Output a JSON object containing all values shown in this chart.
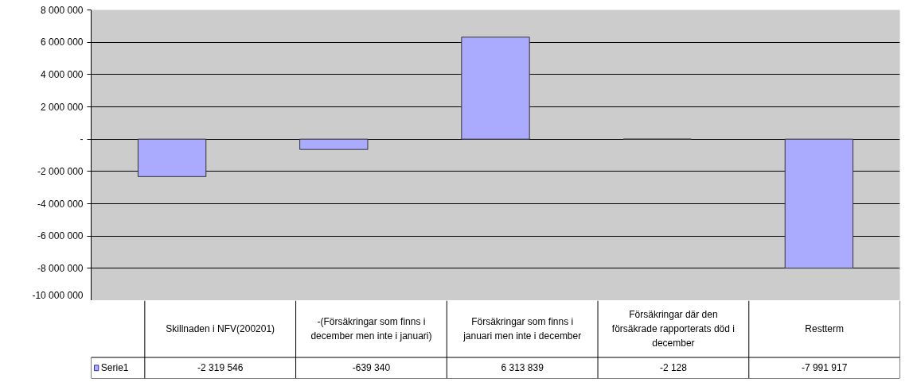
{
  "chart_data": {
    "type": "bar",
    "categories": [
      "Skillnaden i NFV(200201)",
      "-(Försäkringar som finns i december men inte i januari)",
      "Försäkringar som finns i januari men inte i december",
      "Försäkringar där den försäkrade rapporterats död i december",
      "Restterm"
    ],
    "series": [
      {
        "name": "Serie1",
        "color": "#aaaaff",
        "values": [
          -2319546,
          -639340,
          6313839,
          -2128,
          -7991917
        ],
        "value_labels": [
          "-2 319 546",
          "-639 340",
          "6 313 839",
          "-2 128",
          "-7 991 917"
        ]
      }
    ],
    "ylim": [
      -10000000,
      8000000
    ],
    "yticks": [
      {
        "value": -10000000,
        "label": "-10 000 000"
      },
      {
        "value": -8000000,
        "label": "-8 000 000"
      },
      {
        "value": -6000000,
        "label": "-6 000 000"
      },
      {
        "value": -4000000,
        "label": "-4 000 000"
      },
      {
        "value": -2000000,
        "label": "-2 000 000"
      },
      {
        "value": 0,
        "label": "-"
      },
      {
        "value": 2000000,
        "label": "2 000 000"
      },
      {
        "value": 4000000,
        "label": "4 000 000"
      },
      {
        "value": 6000000,
        "label": "6 000 000"
      },
      {
        "value": 8000000,
        "label": "8 000 000"
      }
    ],
    "grid": "y",
    "legend": "bottom"
  }
}
